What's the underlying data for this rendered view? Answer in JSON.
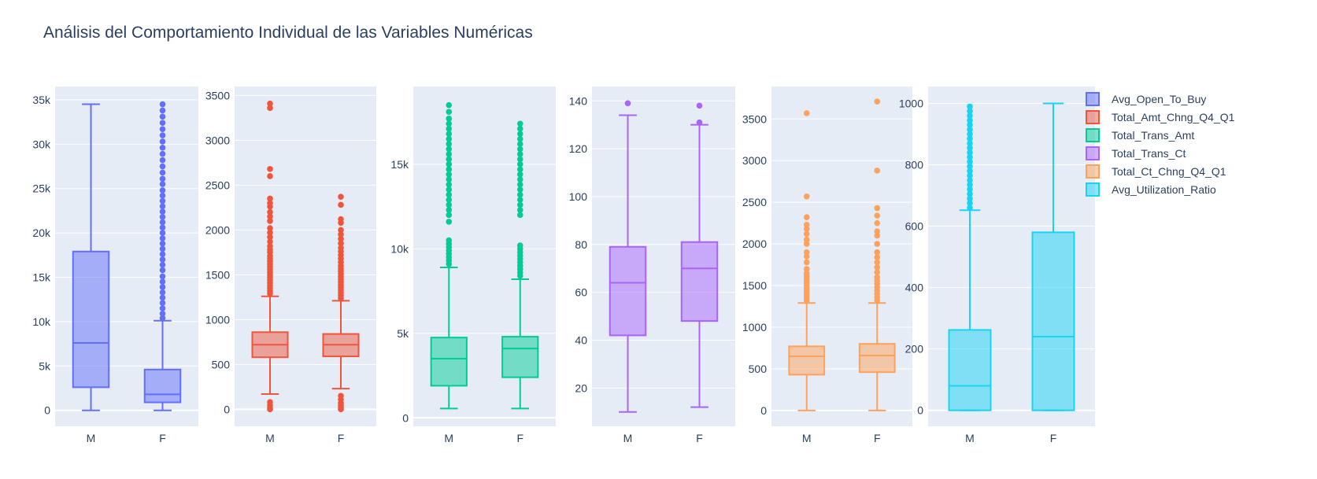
{
  "chart_data": {
    "type": "box",
    "title": "Análisis del Comportamiento Individual de las Variables Numéricas",
    "categories": [
      "M",
      "F"
    ],
    "grid": true,
    "legend_position": "right",
    "series": [
      {
        "name": "Avg_Open_To_Buy",
        "color": "#636efa",
        "tick_values": [
          0,
          5000,
          10000,
          15000,
          20000,
          25000,
          30000,
          35000
        ],
        "tick_labels": [
          "0",
          "5k",
          "10k",
          "15k",
          "20k",
          "25k",
          "30k",
          "35k"
        ],
        "ylim": [
          -1800,
          36500
        ],
        "boxes": [
          {
            "category": "M",
            "min": 0,
            "q1": 2600,
            "median": 7600,
            "q3": 17900,
            "max": 34500,
            "outliers": []
          },
          {
            "category": "F",
            "min": 0,
            "q1": 900,
            "median": 1800,
            "q3": 4600,
            "max": 10100,
            "outliers": [
              10400,
              10900,
              11500,
              12100,
              12700,
              13300,
              13900,
              14500,
              15100,
              15800,
              16400,
              17000,
              17600,
              18200,
              18800,
              19400,
              20000,
              20600,
              21200,
              21800,
              22400,
              23000,
              23600,
              24200,
              24800,
              25500,
              26100,
              26800,
              27500,
              28200,
              28900,
              29600,
              30300,
              31000,
              31700,
              32400,
              33100,
              33800,
              34500
            ]
          }
        ]
      },
      {
        "name": "Total_Amt_Chng_Q4_Q1",
        "color": "#ef553b",
        "tick_values": [
          0,
          500,
          1000,
          1500,
          2000,
          2500,
          3000,
          3500
        ],
        "tick_labels": [
          "0",
          "500",
          "1000",
          "1500",
          "2000",
          "2500",
          "3000",
          "3500"
        ],
        "ylim": [
          -190,
          3600
        ],
        "boxes": [
          {
            "category": "M",
            "min": 170,
            "q1": 580,
            "median": 720,
            "q3": 860,
            "max": 1260,
            "outliers": [
              0,
              15,
              45,
              80,
              1290,
              1320,
              1350,
              1380,
              1410,
              1440,
              1470,
              1500,
              1530,
              1560,
              1590,
              1620,
              1650,
              1680,
              1710,
              1750,
              1780,
              1820,
              1870,
              1920,
              1970,
              2020,
              2100,
              2150,
              2200,
              2260,
              2300,
              2350,
              2600,
              2680,
              3360,
              3410
            ]
          },
          {
            "category": "F",
            "min": 230,
            "q1": 590,
            "median": 720,
            "q3": 840,
            "max": 1210,
            "outliers": [
              0,
              20,
              40,
              70,
              110,
              150,
              1240,
              1270,
              1300,
              1330,
              1360,
              1390,
              1420,
              1450,
              1480,
              1510,
              1540,
              1570,
              1600,
              1640,
              1680,
              1720,
              1760,
              1800,
              1850,
              1900,
              1950,
              2000,
              2080,
              2120,
              2280,
              2370
            ]
          }
        ]
      },
      {
        "name": "Total_Trans_Amt",
        "color": "#00cc96",
        "tick_values": [
          0,
          5000,
          10000,
          15000
        ],
        "tick_labels": [
          "0",
          "5k",
          "10k",
          "15k"
        ],
        "ylim": [
          -500,
          19600
        ],
        "boxes": [
          {
            "category": "M",
            "min": 550,
            "q1": 1900,
            "median": 3500,
            "q3": 4750,
            "max": 8900,
            "outliers": [
              9100,
              9300,
              9500,
              9700,
              9900,
              10100,
              10300,
              10500,
              11600,
              12000,
              12300,
              12600,
              12900,
              13200,
              13500,
              13800,
              14100,
              14400,
              14700,
              15000,
              15300,
              15600,
              15900,
              16200,
              16500,
              16800,
              17100,
              17400,
              17700,
              18100,
              18500
            ]
          },
          {
            "category": "F",
            "min": 550,
            "q1": 2400,
            "median": 4100,
            "q3": 4800,
            "max": 8200,
            "outliers": [
              8400,
              8600,
              8800,
              9000,
              9200,
              9400,
              9600,
              9800,
              10000,
              10200,
              12000,
              12300,
              12600,
              12900,
              13200,
              13500,
              13800,
              14100,
              14400,
              14700,
              15000,
              15300,
              15600,
              15900,
              16200,
              16500,
              16800,
              17100,
              17400
            ]
          }
        ]
      },
      {
        "name": "Total_Trans_Ct",
        "color": "#ab63fa",
        "tick_values": [
          20,
          40,
          60,
          80,
          100,
          120,
          140
        ],
        "tick_labels": [
          "20",
          "40",
          "60",
          "80",
          "100",
          "120",
          "140"
        ],
        "ylim": [
          4,
          146
        ],
        "boxes": [
          {
            "category": "M",
            "min": 10,
            "q1": 42,
            "median": 64,
            "q3": 79,
            "max": 134,
            "outliers": [
              139
            ]
          },
          {
            "category": "F",
            "min": 12,
            "q1": 48,
            "median": 70,
            "q3": 81,
            "max": 130,
            "outliers": [
              131,
              138
            ]
          }
        ]
      },
      {
        "name": "Total_Ct_Chng_Q4_Q1",
        "color": "#ffa15a",
        "tick_values": [
          0,
          500,
          1000,
          1500,
          2000,
          2500,
          3000,
          3500
        ],
        "tick_labels": [
          "0",
          "500",
          "1000",
          "1500",
          "2000",
          "2500",
          "3000",
          "3500"
        ],
        "ylim": [
          -190,
          3890
        ],
        "boxes": [
          {
            "category": "M",
            "min": 0,
            "q1": 430,
            "median": 650,
            "q3": 770,
            "max": 1290,
            "outliers": [
              1320,
              1350,
              1380,
              1410,
              1440,
              1470,
              1500,
              1530,
              1560,
              1590,
              1620,
              1650,
              1700,
              1780,
              1850,
              1900,
              2000,
              2050,
              2120,
              2180,
              2230,
              2320,
              2570,
              3570
            ]
          },
          {
            "category": "F",
            "min": 0,
            "q1": 460,
            "median": 660,
            "q3": 800,
            "max": 1290,
            "outliers": [
              1320,
              1360,
              1400,
              1440,
              1480,
              1520,
              1560,
              1600,
              1660,
              1720,
              1780,
              1840,
              1900,
              2000,
              2100,
              2150,
              2250,
              2340,
              2430,
              2880,
              3710
            ]
          }
        ]
      },
      {
        "name": "Avg_Utilization_Ratio",
        "color": "#19d3f3",
        "tick_values": [
          0,
          200,
          400,
          600,
          800,
          1000
        ],
        "tick_labels": [
          "0",
          "200",
          "400",
          "600",
          "800",
          "1000"
        ],
        "ylim": [
          -52,
          1055
        ],
        "boxes": [
          {
            "category": "M",
            "min": 0,
            "q1": 0,
            "median": 80,
            "q3": 262,
            "max": 652,
            "outliers": [
              660,
              675,
              690,
              705,
              720,
              735,
              750,
              765,
              780,
              795,
              810,
              825,
              840,
              855,
              870,
              885,
              900,
              915,
              930,
              945,
              960,
              975,
              990
            ]
          },
          {
            "category": "F",
            "min": 0,
            "q1": 0,
            "median": 240,
            "q3": 580,
            "max": 1000,
            "outliers": []
          }
        ]
      }
    ]
  }
}
